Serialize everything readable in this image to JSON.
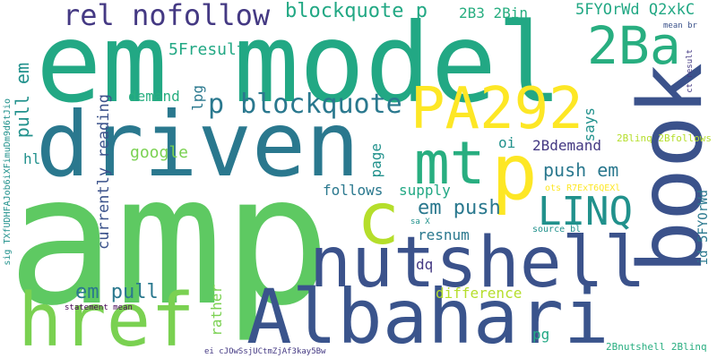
{
  "colors": {
    "background": "#ffffff",
    "palette": [
      "#5ec962",
      "#21918c",
      "#3b528b",
      "#443983",
      "#440154",
      "#2a788e",
      "#22a884",
      "#7ad151",
      "#fde725",
      "#28ae80",
      "#3a548c",
      "#b5de2b"
    ]
  },
  "words": [
    {
      "id": "amp",
      "text": "amp",
      "color": "#5ec962"
    },
    {
      "id": "model",
      "text": "em model",
      "color": "#22a884"
    },
    {
      "id": "driven",
      "text": "driven",
      "color": "#2a788e"
    },
    {
      "id": "nutshell",
      "text": "nutshell",
      "color": "#3b528b"
    },
    {
      "id": "albahari",
      "text": "Albahari",
      "color": "#3a548c"
    },
    {
      "id": "book",
      "text": "book",
      "color": "#3b528b"
    },
    {
      "id": "href",
      "text": "href",
      "color": "#7ad151"
    },
    {
      "id": "pa292",
      "text": "PA292",
      "color": "#fde725"
    },
    {
      "id": "p-large",
      "text": "p",
      "color": "#fde725"
    },
    {
      "id": "mt",
      "text": "mt",
      "color": "#28ae80"
    },
    {
      "id": "c",
      "text": "c",
      "color": "#b5de2b"
    },
    {
      "id": "2ba",
      "text": "2Ba",
      "color": "#28ae80"
    },
    {
      "id": "linq",
      "text": "LINQ",
      "color": "#21918c"
    },
    {
      "id": "rel-nofollow",
      "text": "rel nofollow",
      "color": "#443983"
    },
    {
      "id": "p-blockquote",
      "text": "p blockquote",
      "color": "#2a788e"
    },
    {
      "id": "blockquote-p",
      "text": "blockquote p",
      "color": "#22a884"
    },
    {
      "id": "2b3-2bin",
      "text": "2B3 2Bin",
      "color": "#28ae80"
    },
    {
      "id": "5fyorwd-q2xkc",
      "text": "5FYOrWd Q2xkC",
      "color": "#22a884"
    },
    {
      "id": "5fresult",
      "text": "5Fresult",
      "color": "#22a884"
    },
    {
      "id": "pull-em-v",
      "text": "pull em",
      "color": "#21918c"
    },
    {
      "id": "demand",
      "text": "demand",
      "color": "#28ae80"
    },
    {
      "id": "lpg",
      "text": "lpg",
      "color": "#2a788e"
    },
    {
      "id": "google",
      "text": "google",
      "color": "#7ad151"
    },
    {
      "id": "hl",
      "text": "hl",
      "color": "#21918c"
    },
    {
      "id": "currently-reading",
      "text": "currently reading",
      "color": "#3b528b"
    },
    {
      "id": "page",
      "text": "page",
      "color": "#21918c"
    },
    {
      "id": "oi",
      "text": "oi",
      "color": "#21918c"
    },
    {
      "id": "2bdemand",
      "text": "2Bdemand",
      "color": "#443983"
    },
    {
      "id": "push-em",
      "text": "push em",
      "color": "#2a788e"
    },
    {
      "id": "says",
      "text": "says",
      "color": "#21918c"
    },
    {
      "id": "follows",
      "text": "follows",
      "color": "#2a788e"
    },
    {
      "id": "supply",
      "text": "supply",
      "color": "#22a884"
    },
    {
      "id": "em-push",
      "text": "em push",
      "color": "#2a788e"
    },
    {
      "id": "resnum",
      "text": "resnum",
      "color": "#2a788e"
    },
    {
      "id": "dq",
      "text": "dq",
      "color": "#443983"
    },
    {
      "id": "em-pull",
      "text": "em pull",
      "color": "#2a788e"
    },
    {
      "id": "difference",
      "text": "difference",
      "color": "#b5de2b"
    },
    {
      "id": "rather",
      "text": "rather",
      "color": "#7ad151"
    },
    {
      "id": "pg",
      "text": "pg",
      "color": "#22a884"
    },
    {
      "id": "2blinq-2bfollows",
      "text": "2Blinq 2Bfollows",
      "color": "#b5de2b"
    },
    {
      "id": "ots",
      "text": "ots R7ExT6QEXl",
      "color": "#fde725"
    },
    {
      "id": "sa-x",
      "text": "sa X",
      "color": "#21918c"
    },
    {
      "id": "source-bl",
      "text": "source bl",
      "color": "#21918c"
    },
    {
      "id": "id-5fyorwd",
      "text": "id 5FYOrWd",
      "color": "#2a788e"
    },
    {
      "id": "mean-br",
      "text": "mean br",
      "color": "#3b528b"
    },
    {
      "id": "ct-result",
      "text": "ct result",
      "color": "#443983"
    },
    {
      "id": "2bnutshell-2blinq",
      "text": "2Bnutshell 2Blinq",
      "color": "#28ae80"
    },
    {
      "id": "ei-token",
      "text": "ei cJOwSsjUCtmZjAf3kay5Bw",
      "color": "#443983"
    },
    {
      "id": "statement-mean",
      "text": "statement mean",
      "color": "#440154"
    },
    {
      "id": "sig-token",
      "text": "sig TXfUDHFAJob6iXFimuDm9d6tJio",
      "color": "#21918c"
    }
  ]
}
